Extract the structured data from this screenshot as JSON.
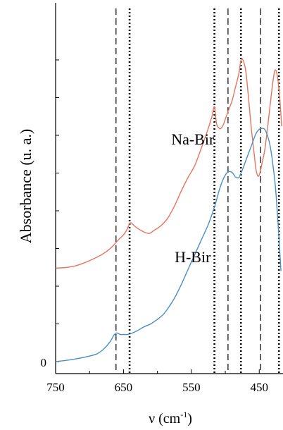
{
  "chart_data": {
    "type": "line",
    "title": "",
    "xlabel_main": "ν (cm",
    "xlabel_sup": "-1",
    "xlabel_end": ")",
    "ylabel": "Absorbance (u. a.)",
    "xlim": [
      750,
      415
    ],
    "x_reversed": true,
    "ylim": [
      0,
      1
    ],
    "y_ticks": [
      0,
      0.125,
      0.25,
      0.375,
      0.5,
      0.625,
      0.75,
      0.875,
      1.0
    ],
    "y_tick_labels": [
      {
        "value": 0,
        "label": "0"
      }
    ],
    "x_ticks": [
      {
        "value": 750,
        "label": "750"
      },
      {
        "value": 650,
        "label": "650"
      },
      {
        "value": 550,
        "label": "550"
      },
      {
        "value": 450,
        "label": "450"
      }
    ],
    "x_minor_ticks": [
      700,
      600,
      500
    ],
    "grid": false,
    "series": [
      {
        "name": "Na-Bir",
        "color": "#e8735f",
        "x": [
          750,
          735,
          720,
          705,
          690,
          675,
          665,
          657,
          650,
          645,
          640,
          635,
          628,
          620,
          612,
          605,
          595,
          585,
          575,
          565,
          555,
          545,
          535,
          527,
          520,
          516,
          513,
          510,
          507,
          503,
          499,
          495,
          490,
          485,
          480,
          477,
          474,
          470,
          466,
          462,
          458,
          455,
          452,
          449,
          446,
          442,
          438,
          434,
          430,
          427,
          424,
          421,
          419,
          417
        ],
        "y": [
          0.31,
          0.312,
          0.318,
          0.33,
          0.345,
          0.365,
          0.385,
          0.405,
          0.42,
          0.437,
          0.46,
          0.452,
          0.44,
          0.43,
          0.425,
          0.435,
          0.45,
          0.475,
          0.515,
          0.565,
          0.61,
          0.65,
          0.71,
          0.76,
          0.81,
          0.845,
          0.79,
          0.776,
          0.772,
          0.785,
          0.81,
          0.835,
          0.865,
          0.91,
          0.955,
          0.998,
          1.0,
          0.965,
          0.88,
          0.78,
          0.7,
          0.64,
          0.615,
          0.625,
          0.656,
          0.7,
          0.77,
          0.85,
          0.925,
          0.965,
          0.955,
          0.905,
          0.85,
          0.78
        ]
      },
      {
        "name": "H-Bir",
        "color": "#4a8ec6",
        "x": [
          750,
          735,
          720,
          705,
          690,
          680,
          670,
          664,
          660,
          655,
          650,
          645,
          640,
          630,
          620,
          610,
          600,
          592,
          585,
          575,
          565,
          555,
          545,
          535,
          525,
          515,
          508,
          502,
          497,
          493,
          489,
          485,
          480,
          477,
          474,
          470,
          465,
          460,
          455,
          450,
          446,
          442,
          438,
          434,
          430,
          426,
          422,
          418
        ],
        "y": [
          0.0,
          0.004,
          0.009,
          0.016,
          0.025,
          0.04,
          0.065,
          0.088,
          0.095,
          0.09,
          0.09,
          0.09,
          0.092,
          0.102,
          0.115,
          0.125,
          0.14,
          0.155,
          0.175,
          0.21,
          0.255,
          0.305,
          0.355,
          0.405,
          0.455,
          0.52,
          0.575,
          0.61,
          0.627,
          0.63,
          0.625,
          0.612,
          0.61,
          0.625,
          0.64,
          0.665,
          0.695,
          0.725,
          0.755,
          0.77,
          0.773,
          0.77,
          0.75,
          0.715,
          0.655,
          0.575,
          0.445,
          0.3
        ]
      }
    ],
    "annotations": [
      {
        "text": "Na-Bir",
        "x": 548,
        "y": 0.72
      },
      {
        "text": "H-Bir",
        "x": 548,
        "y": 0.33
      }
    ],
    "reference_lines": [
      {
        "x": 661,
        "style": "dashed"
      },
      {
        "x": 641,
        "style": "dotted"
      },
      {
        "x": 516,
        "style": "dotted"
      },
      {
        "x": 496,
        "style": "dashed"
      },
      {
        "x": 477,
        "style": "dotted"
      },
      {
        "x": 448,
        "style": "dashed"
      },
      {
        "x": 421,
        "style": "dotted"
      }
    ]
  }
}
